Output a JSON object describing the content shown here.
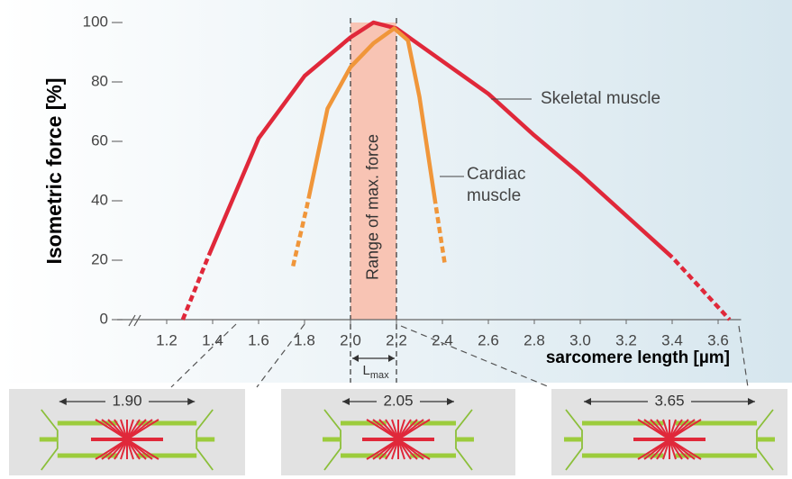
{
  "chart_data": {
    "type": "line",
    "ylabel": "Isometric force [%]",
    "xlabel": "sarcomere length [µm]",
    "xlim": [
      1.0,
      3.7
    ],
    "ylim": [
      0,
      100
    ],
    "xticks": [
      1.2,
      1.4,
      1.6,
      1.8,
      {
        "value": 2,
        "label": "2.0"
      },
      2.2,
      2.4,
      2.6,
      2.8,
      {
        "value": 3,
        "label": "3.0"
      },
      3.2,
      3.4,
      3.6
    ],
    "yticks": [
      0,
      20,
      40,
      60,
      80,
      100
    ],
    "dashed_ends": true,
    "series": [
      {
        "name": "Skeletal muscle",
        "color": "#e0283a",
        "x": [
          1.27,
          1.38,
          1.6,
          1.8,
          2.0,
          2.1,
          2.2,
          2.4,
          2.6,
          2.8,
          3.0,
          3.2,
          3.4,
          3.65
        ],
        "values": [
          0,
          21,
          61,
          82,
          95,
          100,
          98,
          87,
          76,
          62,
          49,
          35,
          21,
          0
        ]
      },
      {
        "name": "Cardiac muscle",
        "color": "#f0963a",
        "x": [
          1.75,
          1.81,
          1.9,
          2.0,
          2.1,
          2.19,
          2.25,
          2.3,
          2.37,
          2.41
        ],
        "values": [
          18,
          38,
          71,
          85,
          93,
          98,
          94,
          75,
          39,
          19
        ]
      }
    ],
    "band": {
      "range": [
        2.0,
        2.2
      ],
      "label": "Range of max. force",
      "color": "#f8c4b4"
    },
    "lmax": {
      "main": "L",
      "sub": "max"
    },
    "diagrams": [
      {
        "label": "1.90"
      },
      {
        "label": "2.05"
      },
      {
        "label": "3.65"
      }
    ]
  }
}
